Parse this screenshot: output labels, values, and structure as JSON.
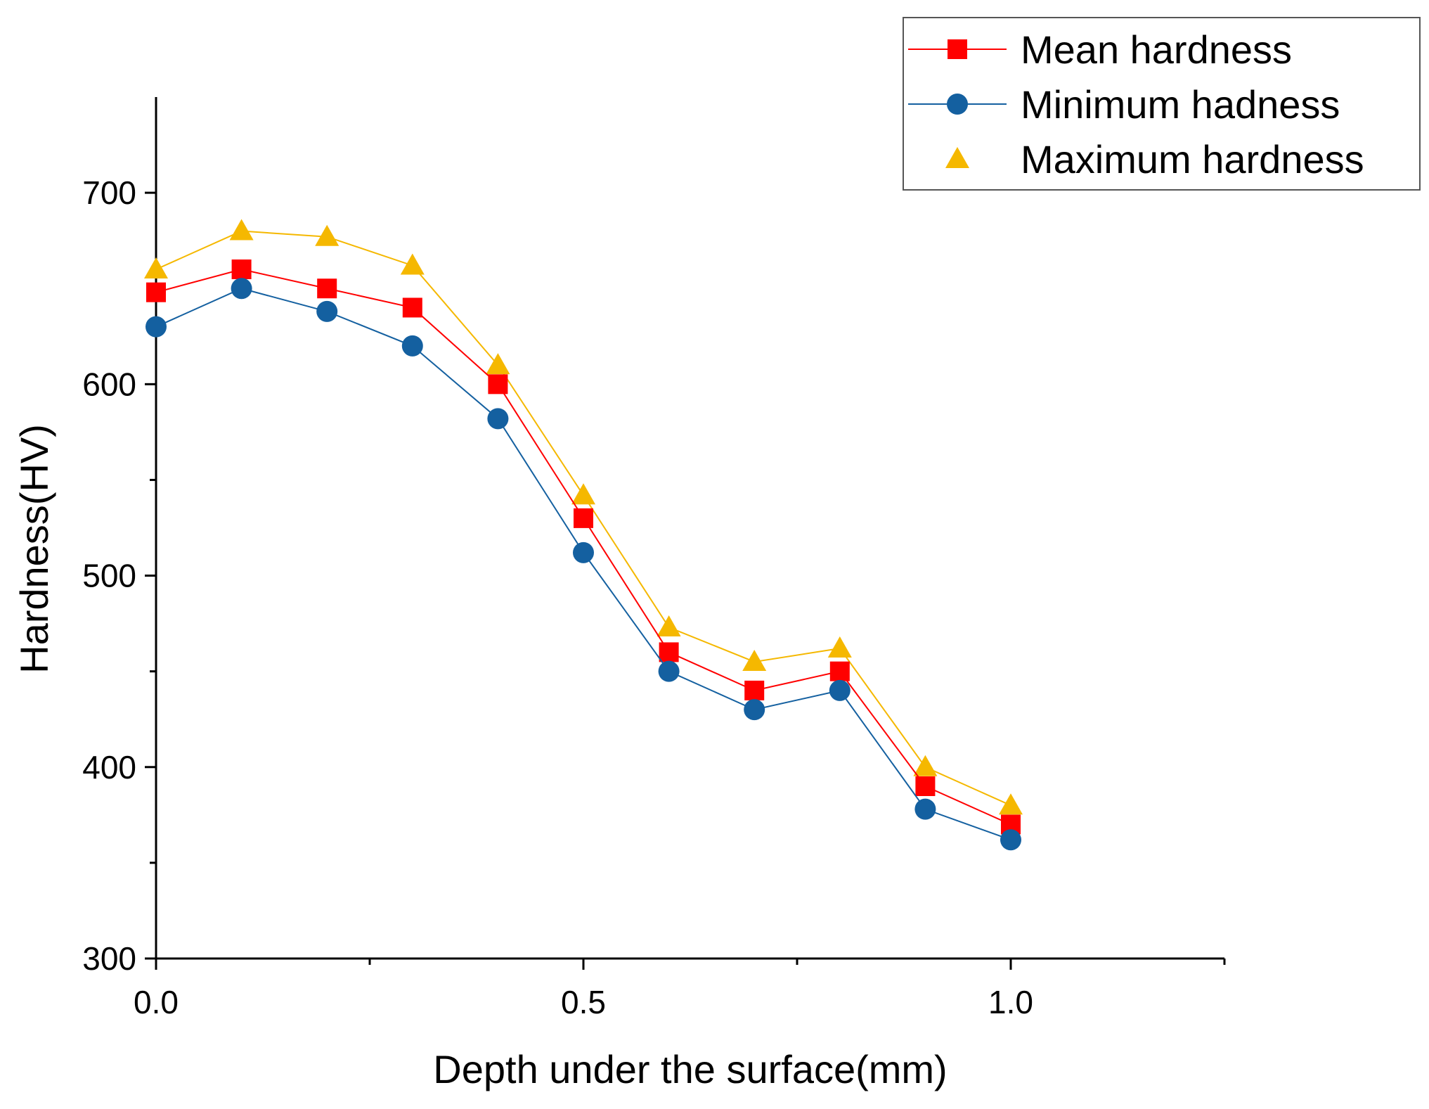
{
  "chart_data": {
    "type": "line",
    "title": "",
    "xlabel": "Depth under the surface(mm)",
    "ylabel": "Hardness(HV)",
    "xlim": [
      0,
      1.25
    ],
    "ylim": [
      300,
      750
    ],
    "x_ticks": [
      0.0,
      0.5,
      1.0
    ],
    "x_tick_labels": [
      "0.0",
      "0.5",
      "1.0"
    ],
    "x_minor_ticks": [
      0.25,
      0.75,
      1.25
    ],
    "y_ticks": [
      300,
      400,
      500,
      600,
      700
    ],
    "y_tick_labels": [
      "300",
      "400",
      "500",
      "600",
      "700"
    ],
    "y_minor_ticks": [
      350,
      450,
      550,
      650
    ],
    "grid": false,
    "legend_position": "top-right",
    "x": [
      0.0,
      0.1,
      0.2,
      0.3,
      0.4,
      0.5,
      0.6,
      0.7,
      0.8,
      0.9,
      1.0
    ],
    "series": [
      {
        "name": "Mean hardness",
        "marker": "square",
        "color": "#ff0000",
        "line_style": "solid",
        "values": [
          648,
          660,
          650,
          640,
          600,
          530,
          460,
          440,
          450,
          390,
          370
        ]
      },
      {
        "name": "Minimum hadness",
        "marker": "circle",
        "color": "#1460a0",
        "line_style": "solid",
        "values": [
          630,
          650,
          638,
          620,
          582,
          512,
          450,
          430,
          440,
          378,
          362
        ]
      },
      {
        "name": "Maximum hardness",
        "marker": "triangle",
        "color": "#f5b800",
        "line_style": "solid",
        "values": [
          660,
          680,
          677,
          662,
          610,
          542,
          473,
          455,
          462,
          400,
          380
        ]
      }
    ]
  }
}
